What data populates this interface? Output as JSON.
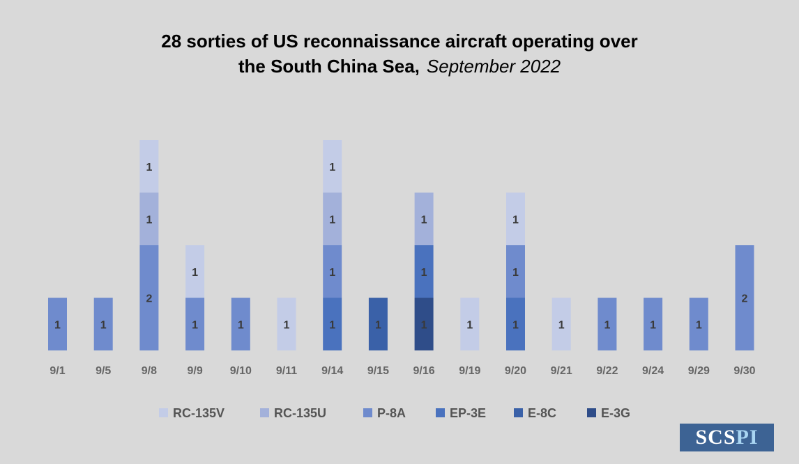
{
  "title": {
    "line1": "28 sorties of US reconnaissance aircraft operating over",
    "line2": "the South China Sea,",
    "line2_italic": "September 2022"
  },
  "chart_data": {
    "type": "bar",
    "stacked": true,
    "categories": [
      "9/1",
      "9/5",
      "9/8",
      "9/9",
      "9/10",
      "9/11",
      "9/14",
      "9/15",
      "9/16",
      "9/19",
      "9/20",
      "9/21",
      "9/22",
      "9/24",
      "9/29",
      "9/30"
    ],
    "series": [
      {
        "name": "RC-135V",
        "color": "#c3cce7",
        "values": [
          0,
          0,
          1,
          1,
          0,
          1,
          1,
          0,
          0,
          1,
          1,
          1,
          0,
          0,
          0,
          0
        ]
      },
      {
        "name": "RC-135U",
        "color": "#a3b1da",
        "values": [
          0,
          0,
          1,
          0,
          0,
          0,
          1,
          0,
          1,
          0,
          0,
          0,
          0,
          0,
          0,
          0
        ]
      },
      {
        "name": "P-8A",
        "color": "#6f8bcd",
        "values": [
          1,
          1,
          2,
          1,
          1,
          0,
          1,
          0,
          0,
          0,
          1,
          0,
          1,
          1,
          1,
          2
        ]
      },
      {
        "name": "EP-3E",
        "color": "#4a72be",
        "values": [
          0,
          0,
          0,
          0,
          0,
          0,
          1,
          0,
          1,
          0,
          1,
          0,
          0,
          0,
          0,
          0
        ]
      },
      {
        "name": "E-8C",
        "color": "#3a61a8",
        "values": [
          0,
          0,
          0,
          0,
          0,
          0,
          0,
          1,
          0,
          0,
          0,
          0,
          0,
          0,
          0,
          0
        ]
      },
      {
        "name": "E-3G",
        "color": "#2f4d89",
        "values": [
          0,
          0,
          0,
          0,
          0,
          0,
          0,
          0,
          1,
          0,
          0,
          0,
          0,
          0,
          0,
          0
        ]
      }
    ],
    "ylim": [
      0,
      4
    ],
    "grid": false,
    "legend": "bottom",
    "data_labels": true
  },
  "logo": {
    "part1": "SCS",
    "part2": "PI"
  }
}
